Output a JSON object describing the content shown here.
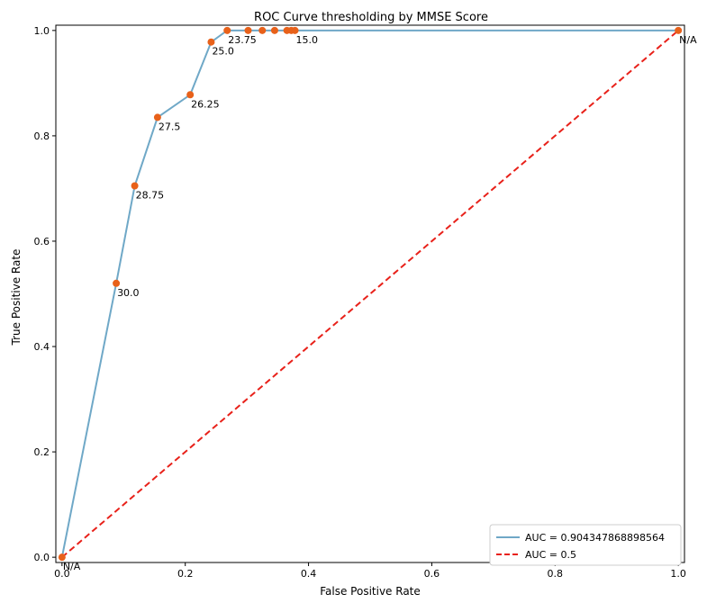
{
  "chart_data": {
    "type": "line",
    "title": "ROC Curve thresholding by MMSE Score",
    "xlabel": "False Positive Rate",
    "ylabel": "True Positive Rate",
    "xlim": [
      -0.01,
      1.01
    ],
    "ylim": [
      -0.01,
      1.01
    ],
    "xticks": [
      0.0,
      0.2,
      0.4,
      0.6,
      0.8,
      1.0
    ],
    "xtick_labels": [
      "0.0",
      "0.2",
      "0.4",
      "0.6",
      "0.8",
      "1.0"
    ],
    "yticks": [
      0.0,
      0.2,
      0.4,
      0.6,
      0.8,
      1.0
    ],
    "ytick_labels": [
      "0.0",
      "0.2",
      "0.4",
      "0.6",
      "0.8",
      "1.0"
    ],
    "grid": false,
    "legend_position": "lower-right",
    "series": [
      {
        "name": "AUC = 0.904347868898564",
        "color": "#6fa8c7",
        "style": "solid",
        "x": [
          0.0,
          0.088,
          0.118,
          0.155,
          0.208,
          0.242,
          0.268,
          0.302,
          0.325,
          0.345,
          0.365,
          0.372,
          0.378,
          1.0
        ],
        "y": [
          0.0,
          0.52,
          0.705,
          0.835,
          0.878,
          0.978,
          1.0,
          1.0,
          1.0,
          1.0,
          1.0,
          1.0,
          1.0,
          1.0
        ]
      },
      {
        "name": "AUC = 0.5",
        "color": "#e8211a",
        "style": "dashed",
        "x": [
          0.0,
          1.0
        ],
        "y": [
          0.0,
          1.0
        ]
      }
    ],
    "markers": {
      "color": "#e8611a",
      "x": [
        0.0,
        0.088,
        0.118,
        0.155,
        0.208,
        0.242,
        0.268,
        0.302,
        0.325,
        0.345,
        0.365,
        0.372,
        0.378,
        1.0
      ],
      "y": [
        0.0,
        0.52,
        0.705,
        0.835,
        0.878,
        0.978,
        1.0,
        1.0,
        1.0,
        1.0,
        1.0,
        1.0,
        1.0,
        1.0
      ]
    },
    "annotations": [
      {
        "text": "N/A",
        "x": 0.0,
        "y": 0.0
      },
      {
        "text": "30.0",
        "x": 0.088,
        "y": 0.52
      },
      {
        "text": "28.75",
        "x": 0.118,
        "y": 0.705
      },
      {
        "text": "27.5",
        "x": 0.155,
        "y": 0.835
      },
      {
        "text": "26.25",
        "x": 0.208,
        "y": 0.878
      },
      {
        "text": "25.0",
        "x": 0.242,
        "y": 0.978
      },
      {
        "text": "23.75",
        "x": 0.268,
        "y": 1.0
      },
      {
        "text": "15.0",
        "x": 0.378,
        "y": 1.0
      },
      {
        "text": "N/A",
        "x": 1.0,
        "y": 1.0
      }
    ]
  }
}
